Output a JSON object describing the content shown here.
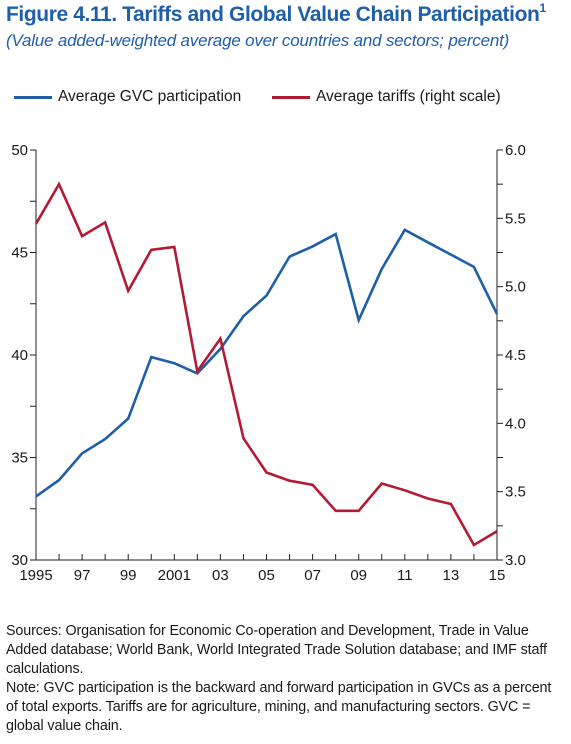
{
  "figure": {
    "title": "Figure 4.11.  Tariffs and Global Value Chain Participation",
    "footnote_mark": "1",
    "subtitle": "(Value added-weighted average over countries and sectors; percent)"
  },
  "colors": {
    "title": "#1f5fa7",
    "gvc": "#1f5fa7",
    "tariffs": "#b31b34",
    "axis": "#222222"
  },
  "legend": [
    {
      "label": "Average GVC participation",
      "color": "#1f5fa7"
    },
    {
      "label": "Average tariffs (right scale)",
      "color": "#b31b34"
    }
  ],
  "chart_data": {
    "type": "line",
    "x": [
      1995,
      1996,
      1997,
      1998,
      1999,
      2000,
      2001,
      2002,
      2003,
      2004,
      2005,
      2006,
      2007,
      2008,
      2009,
      2010,
      2011,
      2012,
      2013,
      2014,
      2015
    ],
    "x_tick_labels": [
      "1995",
      "97",
      "99",
      "2001",
      "03",
      "05",
      "07",
      "09",
      "11",
      "13",
      "15"
    ],
    "xlim": [
      1995,
      2015
    ],
    "left_axis": {
      "ylim": [
        30,
        50
      ],
      "ticks": [
        "30",
        "35",
        "40",
        "45",
        "50"
      ]
    },
    "right_axis": {
      "ylim": [
        3.0,
        6.0
      ],
      "ticks": [
        "3.0",
        "3.5",
        "4.0",
        "4.5",
        "5.0",
        "5.5",
        "6.0"
      ]
    },
    "series": [
      {
        "name": "Average GVC participation",
        "axis": "left",
        "color": "#1f5fa7",
        "values": [
          33.1,
          33.9,
          35.2,
          35.9,
          36.9,
          39.9,
          39.6,
          39.1,
          40.3,
          41.9,
          42.9,
          44.8,
          45.3,
          45.9,
          41.7,
          44.2,
          46.1,
          45.5,
          44.9,
          44.3,
          42.0
        ]
      },
      {
        "name": "Average tariffs (right scale)",
        "axis": "right",
        "color": "#b31b34",
        "values": [
          5.46,
          5.75,
          5.37,
          5.47,
          4.97,
          5.27,
          5.29,
          4.38,
          4.62,
          3.89,
          3.64,
          3.58,
          3.55,
          3.36,
          3.36,
          3.56,
          3.51,
          3.45,
          3.41,
          3.11,
          3.21
        ]
      }
    ],
    "grid": false,
    "legend_position": "top"
  },
  "notes": {
    "sources": "Sources: Organisation for Economic Co-operation and Development, Trade in Value Added database; World Bank, World Integrated Trade Solution database; and IMF staff calculations.",
    "note": "Note: GVC participation is the backward and forward participation in GVCs as a percent of total exports. Tariffs are for agriculture, mining, and manufacturing sectors. GVC = global value chain."
  }
}
